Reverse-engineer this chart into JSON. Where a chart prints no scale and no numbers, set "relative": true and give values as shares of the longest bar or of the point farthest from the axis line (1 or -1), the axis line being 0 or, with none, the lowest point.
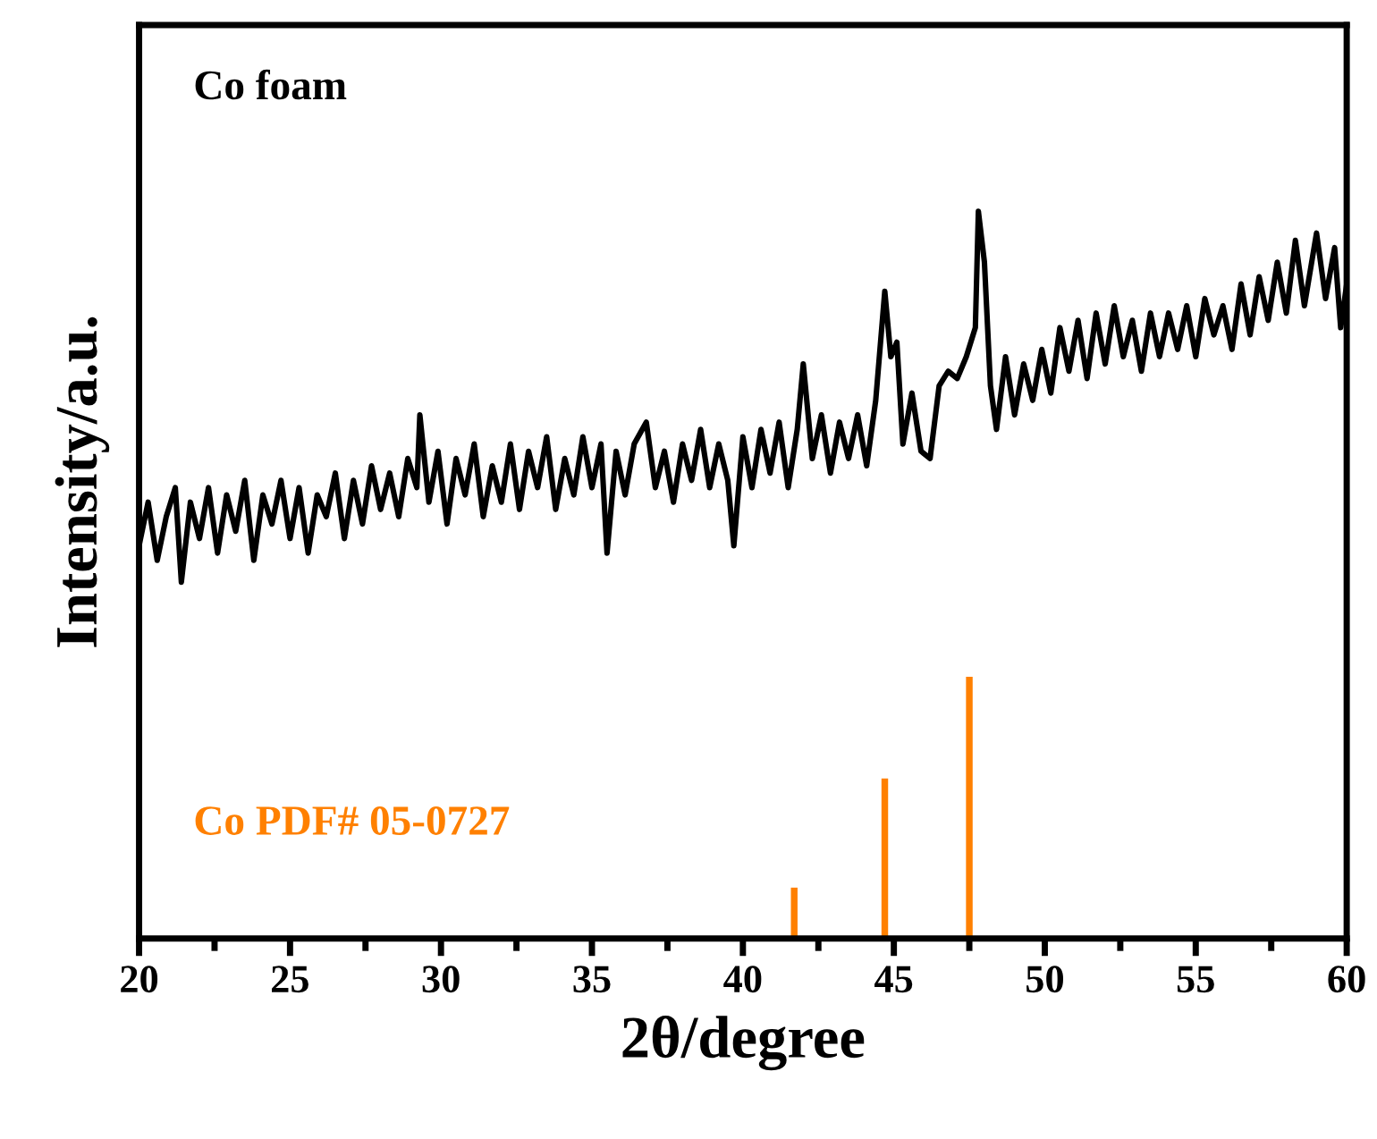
{
  "chart_data": {
    "type": "line",
    "xlabel": "2θ/degree",
    "ylabel": "Intensity/a.u.",
    "relative": true,
    "xlim": [
      20,
      60
    ],
    "xticks": [
      20,
      25,
      30,
      35,
      40,
      45,
      50,
      55,
      60
    ],
    "grid": false,
    "legend": false,
    "series": [
      {
        "name": "Co foam",
        "color": "#000000",
        "x": [
          20.0,
          20.3,
          20.6,
          20.9,
          21.2,
          21.4,
          21.7,
          22.0,
          22.3,
          22.6,
          22.9,
          23.2,
          23.5,
          23.8,
          24.1,
          24.4,
          24.7,
          25.0,
          25.3,
          25.6,
          25.9,
          26.2,
          26.5,
          26.8,
          27.1,
          27.4,
          27.7,
          28.0,
          28.3,
          28.6,
          28.9,
          29.2,
          29.3,
          29.6,
          29.9,
          30.2,
          30.5,
          30.8,
          31.1,
          31.4,
          31.7,
          32.0,
          32.3,
          32.6,
          32.9,
          33.2,
          33.5,
          33.8,
          34.1,
          34.4,
          34.7,
          35.0,
          35.3,
          35.5,
          35.8,
          36.1,
          36.4,
          36.8,
          37.1,
          37.4,
          37.7,
          38.0,
          38.3,
          38.6,
          38.9,
          39.2,
          39.5,
          39.7,
          40.0,
          40.3,
          40.6,
          40.9,
          41.2,
          41.5,
          41.8,
          42.0,
          42.3,
          42.6,
          42.9,
          43.2,
          43.5,
          43.8,
          44.1,
          44.4,
          44.7,
          44.9,
          45.1,
          45.3,
          45.6,
          45.9,
          46.2,
          46.5,
          46.8,
          47.1,
          47.4,
          47.7,
          47.8,
          48.0,
          48.2,
          48.4,
          48.7,
          49.0,
          49.3,
          49.6,
          49.9,
          50.2,
          50.5,
          50.8,
          51.1,
          51.4,
          51.7,
          52.0,
          52.3,
          52.6,
          52.9,
          53.2,
          53.5,
          53.8,
          54.1,
          54.4,
          54.7,
          55.0,
          55.3,
          55.6,
          55.9,
          56.2,
          56.5,
          56.8,
          57.1,
          57.4,
          57.7,
          58.0,
          58.3,
          58.6,
          59.0,
          59.3,
          59.6,
          59.8,
          60.0
        ],
        "values": [
          0.54,
          0.6,
          0.52,
          0.58,
          0.62,
          0.49,
          0.6,
          0.55,
          0.62,
          0.53,
          0.61,
          0.56,
          0.63,
          0.52,
          0.61,
          0.57,
          0.63,
          0.55,
          0.62,
          0.53,
          0.61,
          0.58,
          0.64,
          0.55,
          0.63,
          0.57,
          0.65,
          0.59,
          0.64,
          0.58,
          0.66,
          0.62,
          0.72,
          0.6,
          0.67,
          0.57,
          0.66,
          0.61,
          0.68,
          0.58,
          0.65,
          0.6,
          0.68,
          0.59,
          0.67,
          0.62,
          0.69,
          0.59,
          0.66,
          0.61,
          0.69,
          0.62,
          0.68,
          0.53,
          0.67,
          0.61,
          0.68,
          0.71,
          0.62,
          0.67,
          0.6,
          0.68,
          0.63,
          0.7,
          0.62,
          0.68,
          0.63,
          0.54,
          0.69,
          0.62,
          0.7,
          0.64,
          0.71,
          0.62,
          0.7,
          0.79,
          0.66,
          0.72,
          0.64,
          0.71,
          0.66,
          0.72,
          0.65,
          0.74,
          0.89,
          0.8,
          0.82,
          0.68,
          0.75,
          0.67,
          0.66,
          0.76,
          0.78,
          0.77,
          0.8,
          0.84,
          1.0,
          0.93,
          0.76,
          0.7,
          0.8,
          0.72,
          0.79,
          0.74,
          0.81,
          0.75,
          0.84,
          0.78,
          0.85,
          0.77,
          0.86,
          0.79,
          0.87,
          0.8,
          0.85,
          0.78,
          0.86,
          0.8,
          0.86,
          0.81,
          0.87,
          0.8,
          0.88,
          0.83,
          0.87,
          0.81,
          0.9,
          0.83,
          0.91,
          0.85,
          0.93,
          0.86,
          0.96,
          0.87,
          0.97,
          0.88,
          0.95,
          0.84,
          0.9
        ]
      },
      {
        "name": "Co PDF# 05-0727",
        "type": "bar",
        "color": "#ff8000",
        "x": [
          41.7,
          44.7,
          47.5
        ],
        "values": [
          0.07,
          0.22,
          0.36
        ]
      }
    ]
  }
}
